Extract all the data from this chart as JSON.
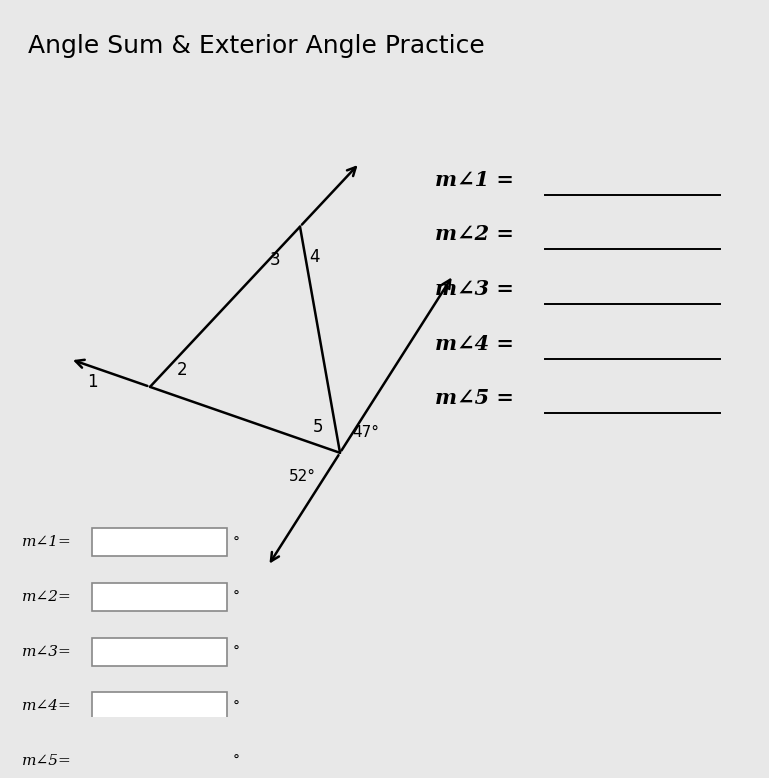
{
  "title": "Angle Sum & Exterior Angle Practice",
  "title_fontsize": 18,
  "background_color": "#e8e8e8",
  "angle_47": "47°",
  "angle_52": "52°",
  "labels": [
    "1",
    "2",
    "3",
    "4",
    "5"
  ],
  "right_labels": [
    "m∠1 =",
    "m∠2 =",
    "m∠3 =",
    "m∠4 =",
    "m∠5 ="
  ],
  "input_labels": [
    "m∠1=",
    "m∠2=",
    "m∠3=",
    "m∠4=",
    "m∠5="
  ],
  "line_color": "#000000",
  "box_color": "#ffffff",
  "box_edge_color": "#888888",
  "A": [
    1.4,
    3.5
  ],
  "B": [
    3.3,
    2.8
  ],
  "C": [
    2.9,
    5.2
  ]
}
